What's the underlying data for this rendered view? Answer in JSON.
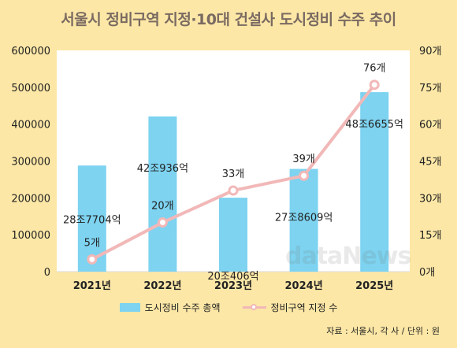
{
  "title": "서울시 정비구역 지정·10대 건설사 도시정비 수주 추이",
  "source": "자료 : 서울시, 각 사 / 단위 : 원",
  "watermark": "dataNews",
  "colors": {
    "bar": "#7dd3f0",
    "line": "#f2b8b8",
    "background": "#fce7a6"
  },
  "chart_data": {
    "type": "bar",
    "categories": [
      "2021년",
      "2022년",
      "2023년",
      "2024년",
      "2025년"
    ],
    "series": [
      {
        "name": "도시정비 수주 총액",
        "type": "bar",
        "axis": "left",
        "values": [
          287704,
          420936,
          200406,
          278609,
          486655
        ],
        "labels": [
          "28조7704억",
          "42조936억",
          "20조406억",
          "27조8609억",
          "48조6655억"
        ]
      },
      {
        "name": "정비구역 지정 수",
        "type": "line",
        "axis": "right",
        "values": [
          5,
          20,
          33,
          39,
          76
        ],
        "labels": [
          "5개",
          "20개",
          "33개",
          "39개",
          "76개"
        ]
      }
    ],
    "y_left": {
      "ylim": [
        0,
        600000
      ],
      "ticks": [
        "0",
        "100000",
        "200000",
        "300000",
        "400000",
        "500000",
        "600000"
      ]
    },
    "y_right": {
      "ylim": [
        0,
        90
      ],
      "ticks": [
        "0개",
        "15개",
        "30개",
        "45개",
        "60개",
        "75개",
        "90개"
      ]
    },
    "grid": false,
    "legend": "bottom"
  }
}
